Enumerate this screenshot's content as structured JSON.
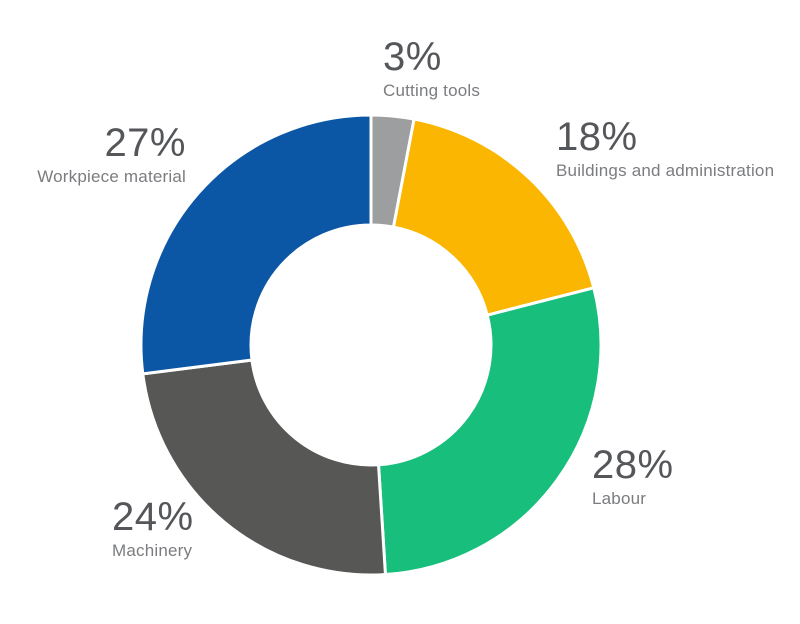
{
  "chart_data": {
    "type": "pie",
    "variant": "donut",
    "title": "",
    "categories": [
      "Cutting tools",
      "Buildings and administration",
      "Labour",
      "Machinery",
      "Workpiece material"
    ],
    "values": [
      3,
      18,
      28,
      24,
      27
    ],
    "unit": "%",
    "colors": [
      "#9d9e9f",
      "#fab600",
      "#17be7c",
      "#575756",
      "#0c57a5"
    ],
    "slugs": [
      "cutting-tools",
      "buildings-and-administration",
      "labour",
      "machinery",
      "workpiece-material"
    ],
    "direction": "clockwise",
    "start_angle_deg": 0,
    "inner_radius_ratio": 0.52,
    "gap_color": "#ffffff",
    "legend_position": "around"
  },
  "callouts": {
    "cutting_tools": {
      "pct": "3%",
      "label": "Cutting tools"
    },
    "buildings": {
      "pct": "18%",
      "label": "Buildings and administration"
    },
    "labour": {
      "pct": "28%",
      "label": "Labour"
    },
    "machinery": {
      "pct": "24%",
      "label": "Machinery"
    },
    "workpiece": {
      "pct": "27%",
      "label": "Workpiece material"
    }
  },
  "text_colors": {
    "percent": "#54565a",
    "category": "#7b7c7f"
  }
}
